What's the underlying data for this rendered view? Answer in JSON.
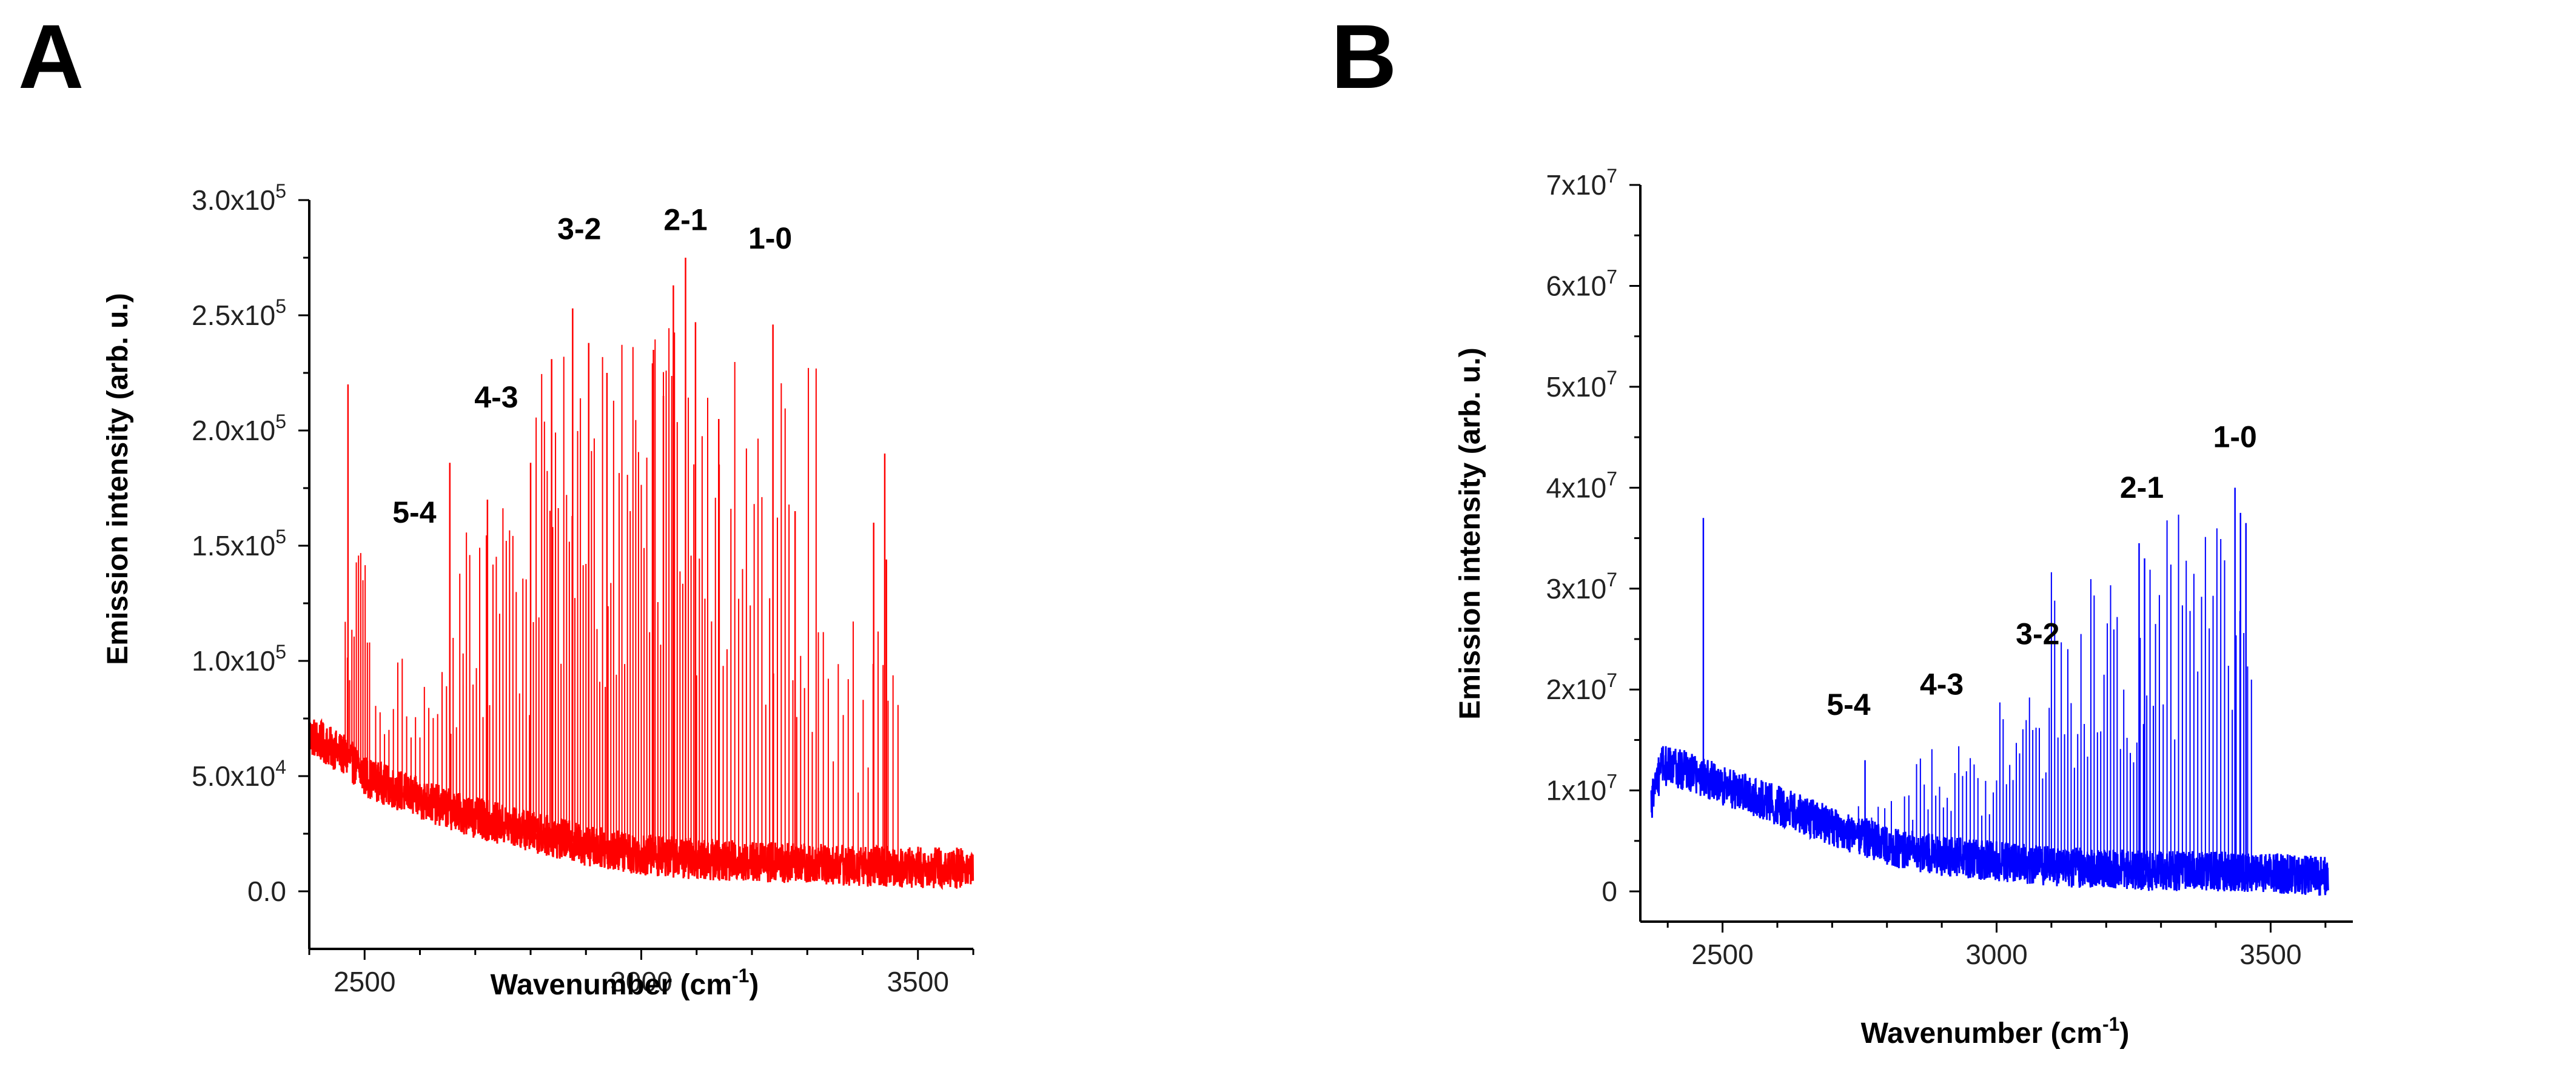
{
  "chart_data": [
    {
      "panel": "A",
      "type": "line",
      "color": "#ff0000",
      "xlabel": "Wavenumber (cm",
      "xlabel_sup": "-1",
      "xlabel_end": ")",
      "ylabel": "Emission intensity (arb. u.)",
      "xlim": [
        2400,
        3600
      ],
      "ylim": [
        -25000,
        300000
      ],
      "xticks": [
        2500,
        3000,
        3500
      ],
      "xtick_labels": [
        "2500",
        "3000",
        "3500"
      ],
      "yticks": [
        0,
        50000,
        100000,
        150000,
        200000,
        250000,
        300000
      ],
      "ytick_labels": [
        {
          "mant": "0.0",
          "exp": ""
        },
        {
          "mant": "5.0x10",
          "exp": "4"
        },
        {
          "mant": "1.0x10",
          "exp": "5"
        },
        {
          "mant": "1.5x10",
          "exp": "5"
        },
        {
          "mant": "2.0x10",
          "exp": "5"
        },
        {
          "mant": "2.5x10",
          "exp": "5"
        },
        {
          "mant": "3.0x10",
          "exp": "5"
        }
      ],
      "baseline": [
        [
          2400,
          68000
        ],
        [
          2470,
          58000
        ],
        [
          2500,
          50000
        ],
        [
          2600,
          40000
        ],
        [
          2700,
          32000
        ],
        [
          2800,
          26000
        ],
        [
          2900,
          20000
        ],
        [
          3000,
          16000
        ],
        [
          3100,
          14000
        ],
        [
          3200,
          13000
        ],
        [
          3300,
          12000
        ],
        [
          3400,
          11000
        ],
        [
          3500,
          10500
        ],
        [
          3600,
          10000
        ]
      ],
      "noise": 9000,
      "start": 2400,
      "end": 3600,
      "peak_groups": [
        {
          "start": 2465,
          "end": 2510,
          "spacing": 4,
          "max": 150000,
          "min": 90000
        },
        {
          "start": 2520,
          "end": 2660,
          "spacing": 8,
          "max": 105000,
          "min": 60000
        },
        {
          "start": 2660,
          "end": 2800,
          "spacing": 6,
          "max": 170000,
          "min": 70000
        },
        {
          "start": 2800,
          "end": 2960,
          "spacing": 5,
          "max": 240000,
          "min": 80000
        },
        {
          "start": 2960,
          "end": 3120,
          "spacing": 5,
          "max": 250000,
          "min": 90000
        },
        {
          "start": 3120,
          "end": 3320,
          "spacing": 7,
          "max": 230000,
          "min": 60000
        },
        {
          "start": 3320,
          "end": 3465,
          "spacing": 9,
          "max": 120000,
          "min": 40000
        }
      ],
      "peaks": [
        [
          2470,
          220000
        ],
        [
          2654,
          186000
        ],
        [
          2722,
          170000
        ],
        [
          2800,
          186000
        ],
        [
          2838,
          231000
        ],
        [
          2876,
          253000
        ],
        [
          2905,
          238000
        ],
        [
          2938,
          225000
        ],
        [
          3022,
          235000
        ],
        [
          3040,
          215000
        ],
        [
          3058,
          263000
        ],
        [
          3080,
          275000
        ],
        [
          3098,
          247000
        ],
        [
          3140,
          205000
        ],
        [
          3238,
          246000
        ],
        [
          3278,
          165000
        ],
        [
          3420,
          160000
        ],
        [
          3440,
          190000
        ],
        [
          3443,
          144000
        ]
      ],
      "annotations": [
        {
          "text": "5-4",
          "x": 2590,
          "y": 160000
        },
        {
          "text": "4-3",
          "x": 2738,
          "y": 210000
        },
        {
          "text": "3-2",
          "x": 2888,
          "y": 283000
        },
        {
          "text": "2-1",
          "x": 3080,
          "y": 287000
        },
        {
          "text": "1-0",
          "x": 3233,
          "y": 279000
        }
      ]
    },
    {
      "panel": "B",
      "type": "line",
      "color": "#0000ff",
      "xlabel": "Wavenumber (cm",
      "xlabel_sup": "-1",
      "xlabel_end": ")",
      "ylabel": "Emission intensity (arb. u.)",
      "xlim": [
        2350,
        3650
      ],
      "ylim": [
        -3000000,
        70000000
      ],
      "xticks": [
        2500,
        3000,
        3500
      ],
      "xtick_labels": [
        "2500",
        "3000",
        "3500"
      ],
      "yticks": [
        0,
        10000000,
        20000000,
        30000000,
        40000000,
        50000000,
        60000000,
        70000000
      ],
      "ytick_labels": [
        {
          "mant": "0",
          "exp": ""
        },
        {
          "mant": "1x10",
          "exp": "7"
        },
        {
          "mant": "2x10",
          "exp": "7"
        },
        {
          "mant": "3x10",
          "exp": "7"
        },
        {
          "mant": "4x10",
          "exp": "7"
        },
        {
          "mant": "5x10",
          "exp": "7"
        },
        {
          "mant": "6x10",
          "exp": "7"
        },
        {
          "mant": "7x10",
          "exp": "7"
        }
      ],
      "baseline": [
        [
          2370,
          9000000
        ],
        [
          2390,
          12500000
        ],
        [
          2430,
          12000000
        ],
        [
          2500,
          10500000
        ],
        [
          2600,
          8500000
        ],
        [
          2700,
          6500000
        ],
        [
          2800,
          4500000
        ],
        [
          2900,
          3500000
        ],
        [
          3000,
          3000000
        ],
        [
          3100,
          2500000
        ],
        [
          3200,
          2200000
        ],
        [
          3300,
          2000000
        ],
        [
          3400,
          2000000
        ],
        [
          3500,
          1800000
        ],
        [
          3600,
          1500000
        ]
      ],
      "noise": 2000000,
      "start": 2370,
      "end": 3605,
      "peak_groups": [
        {
          "start": 2700,
          "end": 2840,
          "spacing": 12,
          "max": 10000000,
          "min": 5000000
        },
        {
          "start": 2840,
          "end": 3000,
          "spacing": 7,
          "max": 15000000,
          "min": 7000000
        },
        {
          "start": 3000,
          "end": 3100,
          "spacing": 6,
          "max": 20500000,
          "min": 10000000
        },
        {
          "start": 3100,
          "end": 3290,
          "spacing": 6,
          "max": 32000000,
          "min": 12000000
        },
        {
          "start": 3290,
          "end": 3470,
          "spacing": 7,
          "max": 38000000,
          "min": 15000000
        }
      ],
      "peaks": [
        [
          2465,
          37000000
        ],
        [
          2760,
          13000000
        ],
        [
          3260,
          34500000
        ],
        [
          3270,
          33000000
        ],
        [
          3435,
          40000000
        ],
        [
          3445,
          37500000
        ],
        [
          3455,
          36500000
        ]
      ],
      "annotations": [
        {
          "text": "5-4",
          "x": 2730,
          "y": 17500000
        },
        {
          "text": "4-3",
          "x": 2900,
          "y": 19500000
        },
        {
          "text": "3-2",
          "x": 3075,
          "y": 24500000
        },
        {
          "text": "2-1",
          "x": 3265,
          "y": 39000000
        },
        {
          "text": "1-0",
          "x": 3435,
          "y": 44000000
        }
      ]
    }
  ]
}
